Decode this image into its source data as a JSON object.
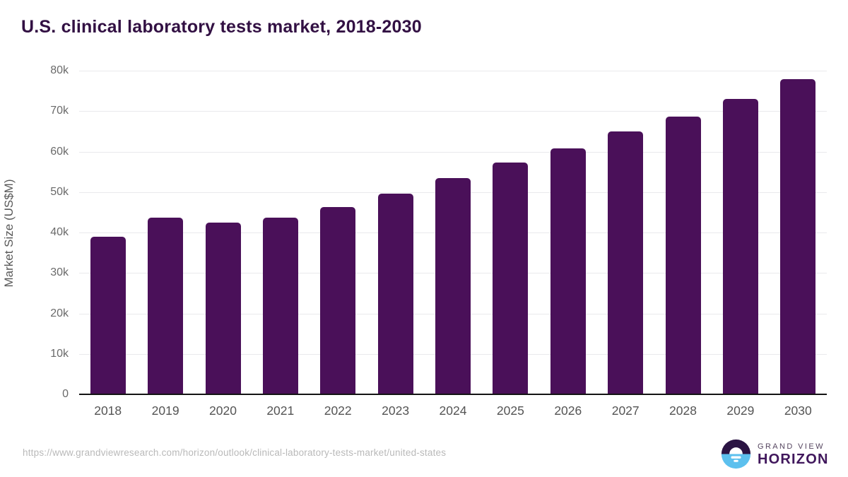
{
  "title": "U.S. clinical laboratory tests market, 2018-2030",
  "chart_data": {
    "type": "bar",
    "title": "U.S. clinical laboratory tests market, 2018-2030",
    "categories": [
      "2018",
      "2019",
      "2020",
      "2021",
      "2022",
      "2023",
      "2024",
      "2025",
      "2026",
      "2027",
      "2028",
      "2029",
      "2030"
    ],
    "values": [
      38900,
      43600,
      42500,
      43600,
      46300,
      49700,
      53400,
      57300,
      60800,
      64900,
      68700,
      73000,
      77900
    ],
    "values_unit": "US$M",
    "xlabel": "",
    "ylabel": "Market Size (US$M)",
    "ylim": [
      0,
      80000
    ],
    "yticks": [
      {
        "value": 0,
        "label": "0"
      },
      {
        "value": 10000,
        "label": "10k"
      },
      {
        "value": 20000,
        "label": "20k"
      },
      {
        "value": 30000,
        "label": "30k"
      },
      {
        "value": 40000,
        "label": "40k"
      },
      {
        "value": 50000,
        "label": "50k"
      },
      {
        "value": 60000,
        "label": "60k"
      },
      {
        "value": 70000,
        "label": "70k"
      },
      {
        "value": 80000,
        "label": "80k"
      }
    ],
    "grid": "horizontal",
    "legend": "none",
    "bar_color": "#4a1059"
  },
  "footer": {
    "source_url": "https://www.grandviewresearch.com/horizon/outlook/clinical-laboratory-tests-market/united-states"
  },
  "logo": {
    "brand_top": "GRAND VIEW",
    "brand_bottom": "HORIZON",
    "icon": "sun-over-horizon-icon",
    "icon_top_color": "#2b1443",
    "icon_bottom_color": "#5cc0ee"
  },
  "colors": {
    "background": "#ffffff",
    "bar": "#4a1059",
    "title_text": "#321043",
    "axis_text": "#6a6a6a",
    "gridline": "#e9e9ec"
  }
}
